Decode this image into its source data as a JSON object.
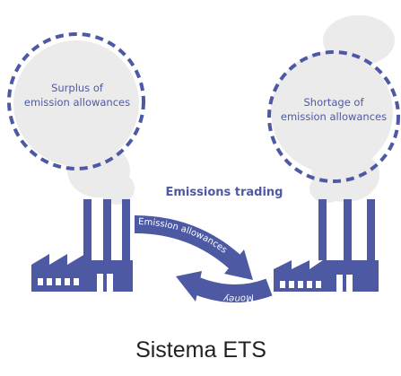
{
  "left_circle": {
    "lines": [
      "Surplus of",
      "emission allowances"
    ]
  },
  "right_circle": {
    "lines": [
      "Shortage of",
      "emission allowances"
    ]
  },
  "center_label": "Emissions trading",
  "arrow_top": "Emission allowances",
  "arrow_bottom": "Money",
  "caption": "Sistema ETS"
}
